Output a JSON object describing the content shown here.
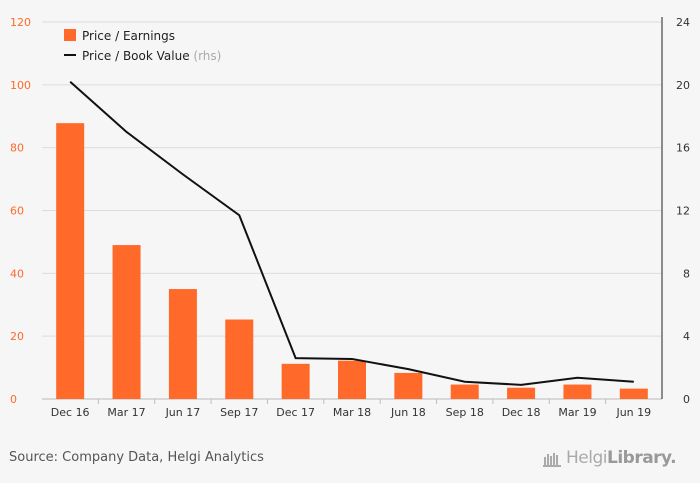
{
  "chart_data": {
    "type": "bar",
    "categories": [
      "Dec 16",
      "Mar 17",
      "Jun 17",
      "Sep 17",
      "Dec 17",
      "Mar 18",
      "Jun 18",
      "Sep 18",
      "Dec 18",
      "Mar 19",
      "Jun 19"
    ],
    "series": [
      {
        "name": "Price / Earnings",
        "type": "bar",
        "axis": "left",
        "color": "#ff6a2a",
        "values": [
          87.8,
          49.0,
          35.0,
          25.3,
          11.2,
          12.2,
          8.3,
          4.6,
          3.6,
          4.6,
          3.3
        ]
      },
      {
        "name": "Price / Book Value",
        "type": "line",
        "axis": "right",
        "color": "#111111",
        "values": [
          20.2,
          17.0,
          14.3,
          11.7,
          2.6,
          2.55,
          1.9,
          1.1,
          0.9,
          1.35,
          1.1
        ]
      }
    ],
    "y_left": {
      "min": 0,
      "max": 120,
      "ticks": [
        0,
        20,
        40,
        60,
        80,
        100,
        120
      ],
      "color": "#ff6a2a"
    },
    "y_right": {
      "min": 0,
      "max": 24,
      "ticks": [
        0,
        4,
        8,
        12,
        16,
        20,
        24
      ],
      "color": "#333333"
    },
    "grid": true,
    "legend": {
      "position": "top-left",
      "items": [
        {
          "label": "Price / Earnings",
          "suffix": ""
        },
        {
          "label": "Price / Book Value",
          "suffix": "(rhs)"
        }
      ]
    }
  },
  "footer": {
    "source": "Source: Company Data, Helgi Analytics",
    "logo_light": "Helgi",
    "logo_bold": "Library."
  }
}
